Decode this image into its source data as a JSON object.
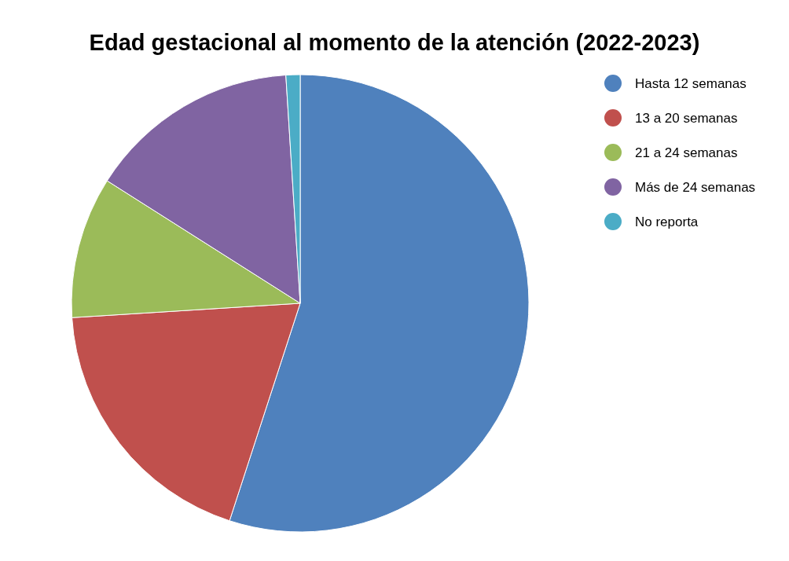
{
  "chart_data": {
    "type": "pie",
    "title": "Edad gestacional al momento de la atención (2022-2023)",
    "categories": [
      "Hasta 12 semanas",
      "13 a 20 semanas",
      "21 a 24 semanas",
      "Más de 24 semanas",
      "No reporta"
    ],
    "values": [
      55,
      19,
      10,
      15,
      1
    ],
    "colors": [
      "#4f81bd",
      "#c0504d",
      "#9bbb59",
      "#8064a2",
      "#4bacc6"
    ],
    "legend": "right"
  }
}
